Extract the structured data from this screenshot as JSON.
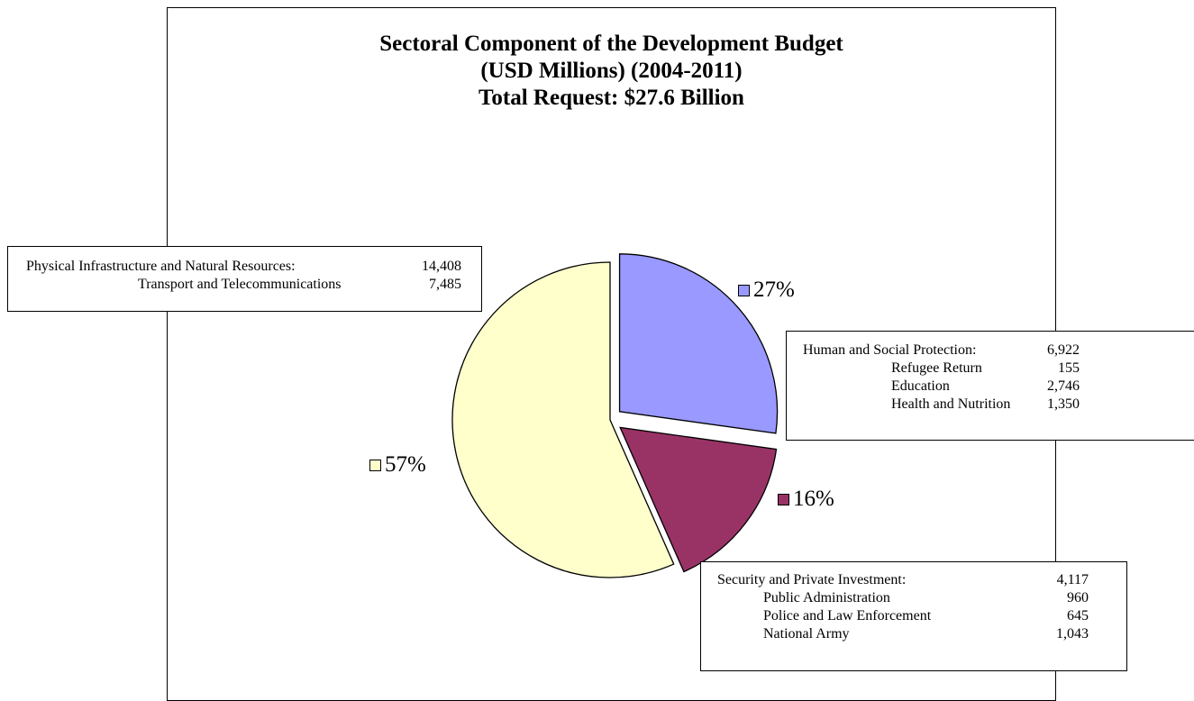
{
  "chart_data": {
    "type": "pie",
    "title": "Sectoral Component of the Development Budget",
    "subtitle": "(USD Millions) (2004-2011)",
    "subtitle2": "Total Request: $27.6 Billion",
    "slices": [
      {
        "label": "Human and Social Protection",
        "value": 6922,
        "percent_label": "27%",
        "color": "#9999ff",
        "exploded": true
      },
      {
        "label": "Security and Private Investment",
        "value": 4117,
        "percent_label": "16%",
        "color": "#993366",
        "exploded": true
      },
      {
        "label": "Physical Infrastructure and Natural Resources",
        "value": 14408,
        "percent_label": "57%",
        "color": "#ffffcc",
        "exploded": false
      }
    ],
    "legend": "none",
    "annotations": {
      "physical": {
        "rows": [
          {
            "name": "Physical Infrastructure and Natural Resources:",
            "value": "14,408"
          },
          {
            "name": "Transport and Telecommunications",
            "value": "7,485"
          }
        ]
      },
      "human": {
        "rows": [
          {
            "name": "Human and Social Protection:",
            "value": "6,922"
          },
          {
            "name": "Refugee Return",
            "value": "155"
          },
          {
            "name": "Education",
            "value": "2,746"
          },
          {
            "name": "Health and Nutrition",
            "value": "1,350"
          }
        ]
      },
      "security": {
        "rows": [
          {
            "name": "Security and Private Investment:",
            "value": "4,117"
          },
          {
            "name": "Public Administration",
            "value": "960"
          },
          {
            "name": "Police and Law Enforcement",
            "value": "645"
          },
          {
            "name": "National Army",
            "value": "1,043"
          }
        ]
      }
    }
  }
}
